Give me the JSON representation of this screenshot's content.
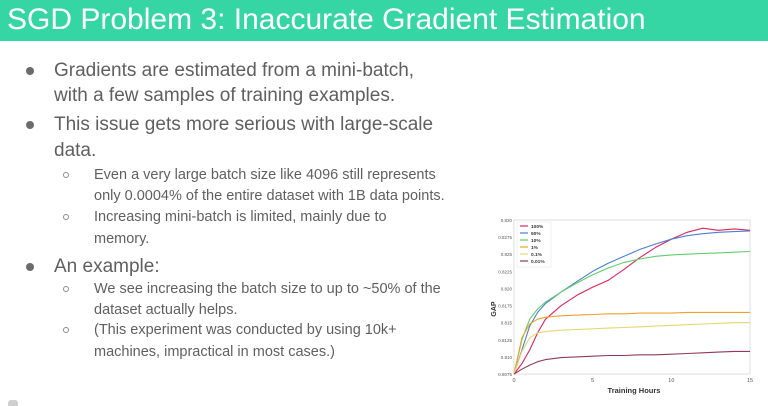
{
  "slide": {
    "title": "SGD Problem 3: Inaccurate Gradient Estimation",
    "bullets": [
      {
        "level": 1,
        "lines": [
          "Gradients are estimated from a mini-batch,",
          "with a few samples of training examples."
        ]
      },
      {
        "level": 1,
        "lines": [
          "This issue gets more serious with large-scale",
          "data."
        ]
      },
      {
        "level": 2,
        "lines": [
          "Even a very large batch size like 4096 still represents",
          "only 0.0004% of the entire dataset with 1B data points."
        ]
      },
      {
        "level": 2,
        "lines": [
          "Increasing mini-batch is limited, mainly due to",
          "memory."
        ]
      },
      {
        "level": 1,
        "lines": [
          "An example:"
        ]
      },
      {
        "level": 2,
        "lines": [
          "We see increasing the batch size to up to ~50% of the",
          "dataset actually helps."
        ]
      },
      {
        "level": 2,
        "lines": [
          "(This experiment was conducted by using 10k+",
          "machines, impractical in most cases.)"
        ]
      }
    ],
    "colors": {
      "title_bar": "#35d5a4",
      "title_text": "#ffffff",
      "body_text": "#5f5f5f"
    }
  },
  "chart_data": {
    "type": "line",
    "xlabel": "Training Hours",
    "ylabel": "GAP",
    "xlim": [
      0,
      15
    ],
    "ylim": [
      0.8075,
      0.83
    ],
    "x_ticks": [
      "0",
      "5",
      "10",
      "15"
    ],
    "y_ticks": [
      "0.8075",
      "0.810",
      "0.8125",
      "0.815",
      "0.8175",
      "0.820",
      "0.8225",
      "0.825",
      "0.8275",
      "0.830"
    ],
    "legend_position": "top-left",
    "grid": true,
    "series": [
      {
        "name": "100%",
        "color": "#e0245e",
        "x": [
          0,
          0.5,
          1,
          1.5,
          2,
          3,
          4,
          5,
          6,
          7,
          8,
          9,
          10,
          11,
          12,
          13,
          14,
          15
        ],
        "y": [
          0.8075,
          0.809,
          0.811,
          0.8135,
          0.8155,
          0.8175,
          0.819,
          0.8202,
          0.8212,
          0.8228,
          0.8245,
          0.826,
          0.8272,
          0.8282,
          0.8288,
          0.8285,
          0.8287,
          0.8285
        ]
      },
      {
        "name": "50%",
        "color": "#4a7fd4",
        "x": [
          0,
          0.5,
          1,
          1.5,
          2,
          3,
          4,
          5,
          6,
          7,
          8,
          9,
          10,
          11,
          12,
          13,
          14,
          15
        ],
        "y": [
          0.8075,
          0.811,
          0.8145,
          0.8165,
          0.8178,
          0.8195,
          0.821,
          0.8225,
          0.8237,
          0.8247,
          0.8257,
          0.8265,
          0.8272,
          0.8277,
          0.828,
          0.8282,
          0.8283,
          0.8284
        ]
      },
      {
        "name": "10%",
        "color": "#5fcf6a",
        "x": [
          0,
          0.5,
          1,
          1.5,
          2,
          3,
          4,
          5,
          6,
          7,
          8,
          9,
          10,
          11,
          12,
          13,
          14,
          15
        ],
        "y": [
          0.8075,
          0.8125,
          0.8155,
          0.817,
          0.818,
          0.8195,
          0.8208,
          0.822,
          0.823,
          0.8238,
          0.8243,
          0.8247,
          0.8249,
          0.825,
          0.8251,
          0.8252,
          0.8253,
          0.8254
        ]
      },
      {
        "name": "1%",
        "color": "#f0a030",
        "x": [
          0,
          0.5,
          1,
          1.5,
          2,
          3,
          4,
          5,
          6,
          7,
          8,
          9,
          10,
          11,
          12,
          13,
          14,
          15
        ],
        "y": [
          0.8075,
          0.8128,
          0.8148,
          0.8155,
          0.8158,
          0.816,
          0.8161,
          0.8162,
          0.8163,
          0.8163,
          0.8164,
          0.8164,
          0.8164,
          0.8165,
          0.8165,
          0.8165,
          0.8165,
          0.8165
        ]
      },
      {
        "name": "0.1%",
        "color": "#e8d670",
        "x": [
          0,
          0.5,
          1,
          1.5,
          2,
          3,
          4,
          5,
          6,
          7,
          8,
          9,
          10,
          11,
          12,
          13,
          14,
          15
        ],
        "y": [
          0.8075,
          0.8108,
          0.8128,
          0.8135,
          0.8137,
          0.8139,
          0.814,
          0.8141,
          0.8142,
          0.8143,
          0.8144,
          0.8145,
          0.8146,
          0.8147,
          0.8148,
          0.8149,
          0.815,
          0.815
        ]
      },
      {
        "name": "0.01%",
        "color": "#8e3b58",
        "x": [
          0,
          0.5,
          1,
          1.5,
          2,
          3,
          4,
          5,
          6,
          7,
          8,
          9,
          10,
          11,
          12,
          13,
          14,
          15
        ],
        "y": [
          0.8075,
          0.8082,
          0.8088,
          0.8093,
          0.8096,
          0.8099,
          0.81,
          0.8101,
          0.8102,
          0.8102,
          0.8103,
          0.8103,
          0.8104,
          0.8105,
          0.8106,
          0.8107,
          0.8108,
          0.8108
        ]
      }
    ]
  }
}
